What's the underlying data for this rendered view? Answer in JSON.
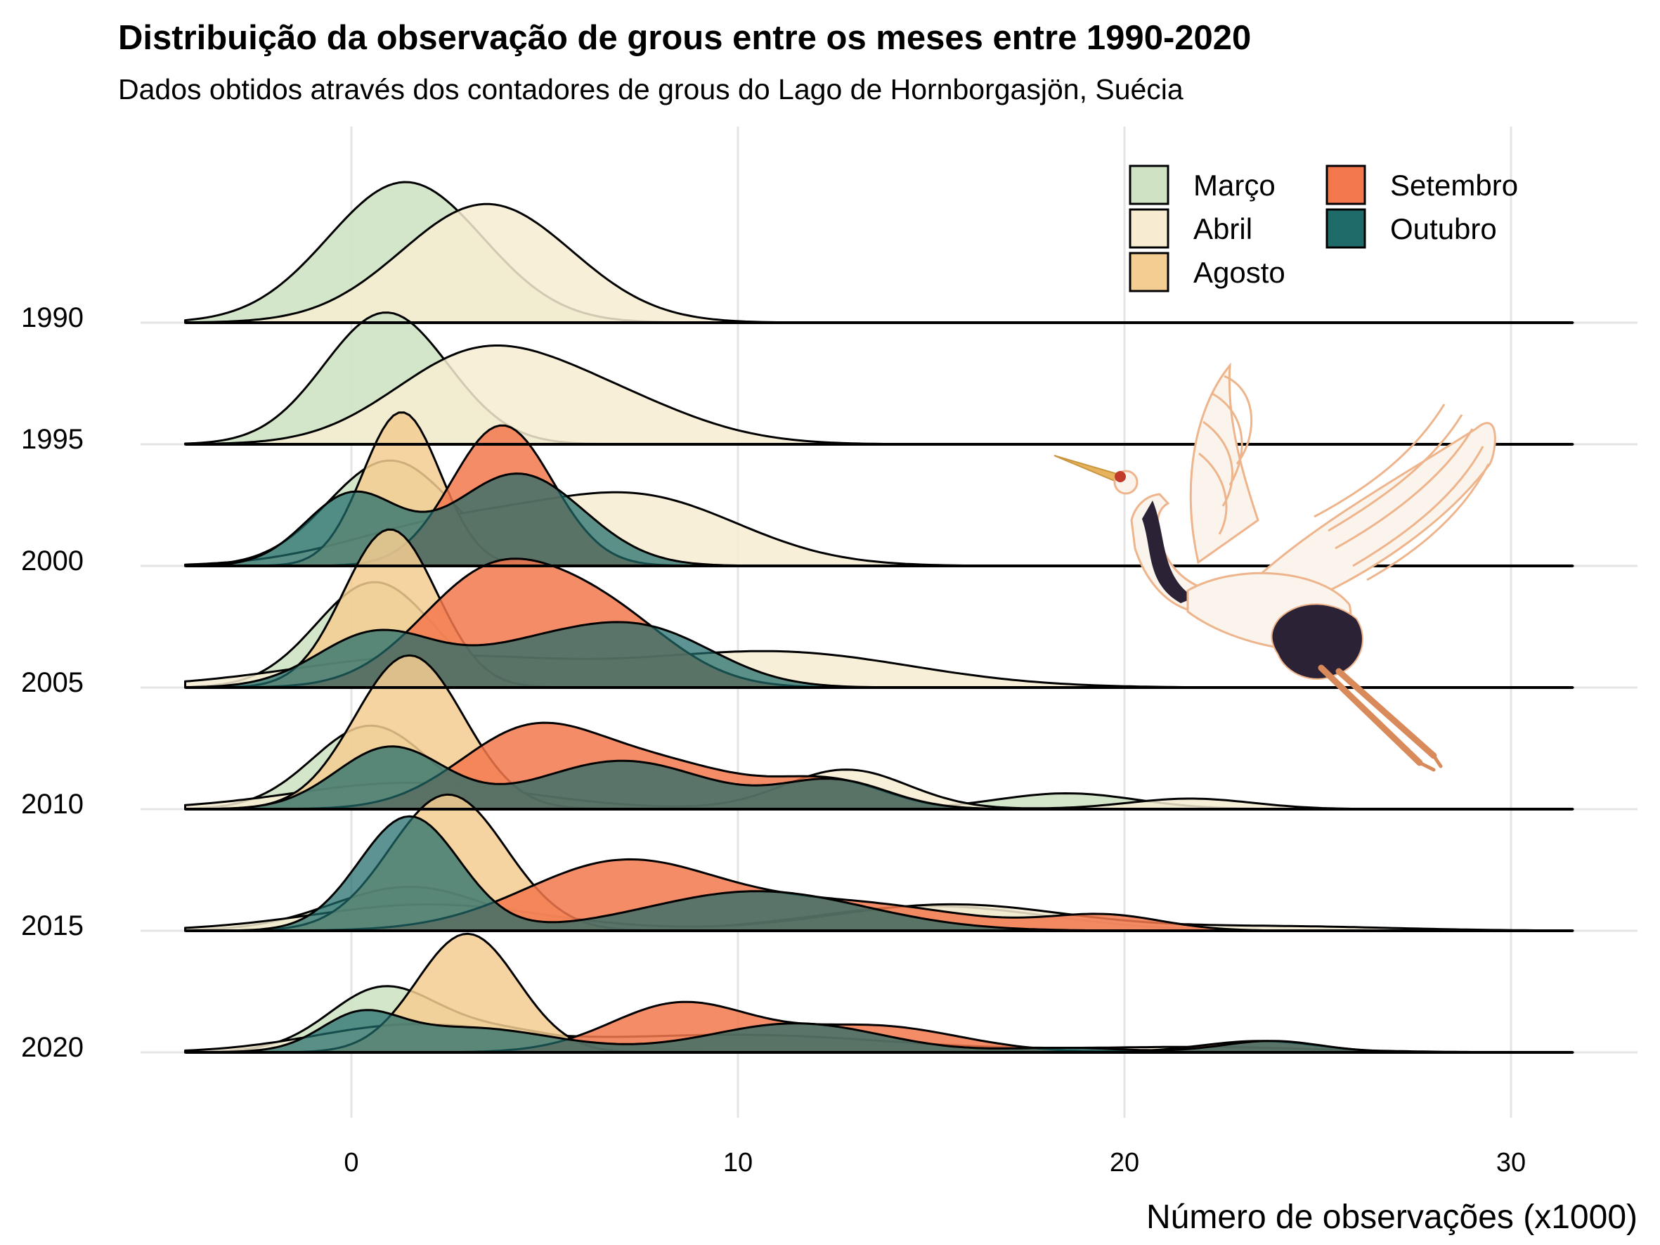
{
  "chart_data": {
    "type": "ridgeline",
    "title": "Distribuição da observação de grous entre os meses entre 1990-2020",
    "subtitle": "Dados obtidos através dos contadores de grous do Lago de Hornborgasjön, Suécia",
    "xlabel": "Número de observações (x1000)",
    "ylabel": "",
    "xlim": [
      -4.3,
      31.6
    ],
    "x_ticks": [
      "0",
      "10",
      "20",
      "30"
    ],
    "x_tick_values": [
      0,
      10,
      20,
      30
    ],
    "years": [
      "1990",
      "1995",
      "2000",
      "2005",
      "2010",
      "2015",
      "2020"
    ],
    "legend": {
      "position": "top-right",
      "entries": [
        {
          "name": "Março",
          "color": "#cfe3c4"
        },
        {
          "name": "Abril",
          "color": "#f7ecd2"
        },
        {
          "name": "Agosto",
          "color": "#f3cd91"
        },
        {
          "name": "Setembro",
          "color": "#f3784e"
        },
        {
          "name": "Outubro",
          "color": "#1f6b6a"
        }
      ]
    },
    "series": [
      {
        "year": "1990",
        "month": "Março",
        "color": "#cfe3c4",
        "components": [
          [
            1.4,
            2.0,
            1.6
          ]
        ]
      },
      {
        "year": "1990",
        "month": "Abril",
        "color": "#f7ecd2",
        "components": [
          [
            3.5,
            2.2,
            1.35
          ]
        ]
      },
      {
        "year": "1995",
        "month": "Março",
        "color": "#cfe3c4",
        "components": [
          [
            0.9,
            1.6,
            1.5
          ]
        ]
      },
      {
        "year": "1995",
        "month": "Abril",
        "color": "#f7ecd2",
        "components": [
          [
            3.0,
            2.1,
            0.85
          ],
          [
            6.2,
            2.4,
            0.55
          ]
        ]
      },
      {
        "year": "2000",
        "month": "Março",
        "color": "#cfe3c4",
        "components": [
          [
            1.0,
            1.6,
            1.2
          ]
        ]
      },
      {
        "year": "2000",
        "month": "Abril",
        "color": "#f7ecd2",
        "components": [
          [
            2.5,
            2.6,
            0.45
          ],
          [
            7.5,
            2.6,
            0.75
          ]
        ]
      },
      {
        "year": "2000",
        "month": "Agosto",
        "color": "#f3cd91",
        "components": [
          [
            1.3,
            1.0,
            1.75
          ]
        ]
      },
      {
        "year": "2000",
        "month": "Setembro",
        "color": "#f3784e",
        "components": [
          [
            3.9,
            1.3,
            1.6
          ]
        ]
      },
      {
        "year": "2000",
        "month": "Outubro",
        "color": "#1f6b6a",
        "components": [
          [
            0.0,
            1.2,
            0.8
          ],
          [
            4.3,
            1.7,
            1.05
          ]
        ]
      },
      {
        "year": "2005",
        "month": "Março",
        "color": "#cfe3c4",
        "components": [
          [
            0.6,
            1.5,
            1.2
          ]
        ]
      },
      {
        "year": "2005",
        "month": "Abril",
        "color": "#f7ecd2",
        "components": [
          [
            2.0,
            3.5,
            0.35
          ],
          [
            11.0,
            3.5,
            0.4
          ]
        ]
      },
      {
        "year": "2005",
        "month": "Agosto",
        "color": "#f3cd91",
        "components": [
          [
            1.0,
            1.2,
            1.8
          ]
        ]
      },
      {
        "year": "2005",
        "month": "Setembro",
        "color": "#f3784e",
        "components": [
          [
            3.5,
            1.8,
            1.2
          ],
          [
            6.5,
            1.8,
            0.8
          ]
        ]
      },
      {
        "year": "2005",
        "month": "Outubro",
        "color": "#1f6b6a",
        "components": [
          [
            0.6,
            1.5,
            0.6
          ],
          [
            4.8,
            2.0,
            0.45
          ],
          [
            7.8,
            1.8,
            0.55
          ]
        ]
      },
      {
        "year": "2010",
        "month": "Março",
        "color": "#cfe3c4",
        "components": [
          [
            0.5,
            1.5,
            0.95
          ],
          [
            18.5,
            1.8,
            0.18
          ]
        ]
      },
      {
        "year": "2010",
        "month": "Abril",
        "color": "#f7ecd2",
        "components": [
          [
            1.5,
            3.0,
            0.3
          ],
          [
            12.8,
            1.6,
            0.45
          ],
          [
            21.7,
            1.6,
            0.12
          ]
        ]
      },
      {
        "year": "2010",
        "month": "Agosto",
        "color": "#f3cd91",
        "components": [
          [
            1.5,
            1.4,
            1.75
          ]
        ]
      },
      {
        "year": "2010",
        "month": "Setembro",
        "color": "#f3784e",
        "components": [
          [
            4.5,
            1.8,
            0.8
          ],
          [
            8.0,
            2.3,
            0.5
          ],
          [
            12.5,
            1.4,
            0.28
          ]
        ]
      },
      {
        "year": "2010",
        "month": "Outubro",
        "color": "#1f6b6a",
        "components": [
          [
            1.0,
            1.4,
            0.7
          ],
          [
            7.0,
            2.2,
            0.55
          ],
          [
            12.5,
            1.4,
            0.32
          ]
        ]
      },
      {
        "year": "2015",
        "month": "Março",
        "color": "#cfe3c4",
        "components": [
          [
            1.5,
            2.0,
            0.5
          ],
          [
            15.0,
            3.0,
            0.28
          ]
        ]
      },
      {
        "year": "2015",
        "month": "Abril",
        "color": "#f7ecd2",
        "components": [
          [
            2.0,
            3.0,
            0.3
          ],
          [
            15.5,
            3.0,
            0.3
          ],
          [
            24.0,
            3.0,
            0.05
          ]
        ]
      },
      {
        "year": "2015",
        "month": "Agosto",
        "color": "#f3cd91",
        "components": [
          [
            2.5,
            1.5,
            1.55
          ]
        ]
      },
      {
        "year": "2015",
        "month": "Setembro",
        "color": "#f3784e",
        "components": [
          [
            7.0,
            2.5,
            0.78
          ],
          [
            13.0,
            2.8,
            0.3
          ],
          [
            19.5,
            1.5,
            0.17
          ]
        ]
      },
      {
        "year": "2015",
        "month": "Outubro",
        "color": "#1f6b6a",
        "components": [
          [
            1.5,
            1.3,
            1.3
          ],
          [
            10.5,
            2.8,
            0.45
          ]
        ]
      },
      {
        "year": "2020",
        "month": "Março",
        "color": "#cfe3c4",
        "components": [
          [
            0.7,
            1.3,
            0.55
          ],
          [
            3.0,
            2.5,
            0.3
          ]
        ]
      },
      {
        "year": "2020",
        "month": "Abril",
        "color": "#f7ecd2",
        "components": [
          [
            1.5,
            2.5,
            0.3
          ],
          [
            10.0,
            4.0,
            0.2
          ],
          [
            22.0,
            3.0,
            0.06
          ]
        ]
      },
      {
        "year": "2020",
        "month": "Agosto",
        "color": "#f3cd91",
        "components": [
          [
            3.0,
            1.3,
            1.35
          ]
        ]
      },
      {
        "year": "2020",
        "month": "Setembro",
        "color": "#f3784e",
        "components": [
          [
            8.5,
            1.8,
            0.55
          ],
          [
            13.5,
            2.2,
            0.3
          ],
          [
            23.5,
            1.5,
            0.13
          ]
        ]
      },
      {
        "year": "2020",
        "month": "Outubro",
        "color": "#1f6b6a",
        "components": [
          [
            0.2,
            1.0,
            0.35
          ],
          [
            3.0,
            2.2,
            0.28
          ],
          [
            11.5,
            2.2,
            0.33
          ],
          [
            18.5,
            1.5,
            0.05
          ],
          [
            23.8,
            1.3,
            0.13
          ]
        ]
      }
    ]
  }
}
